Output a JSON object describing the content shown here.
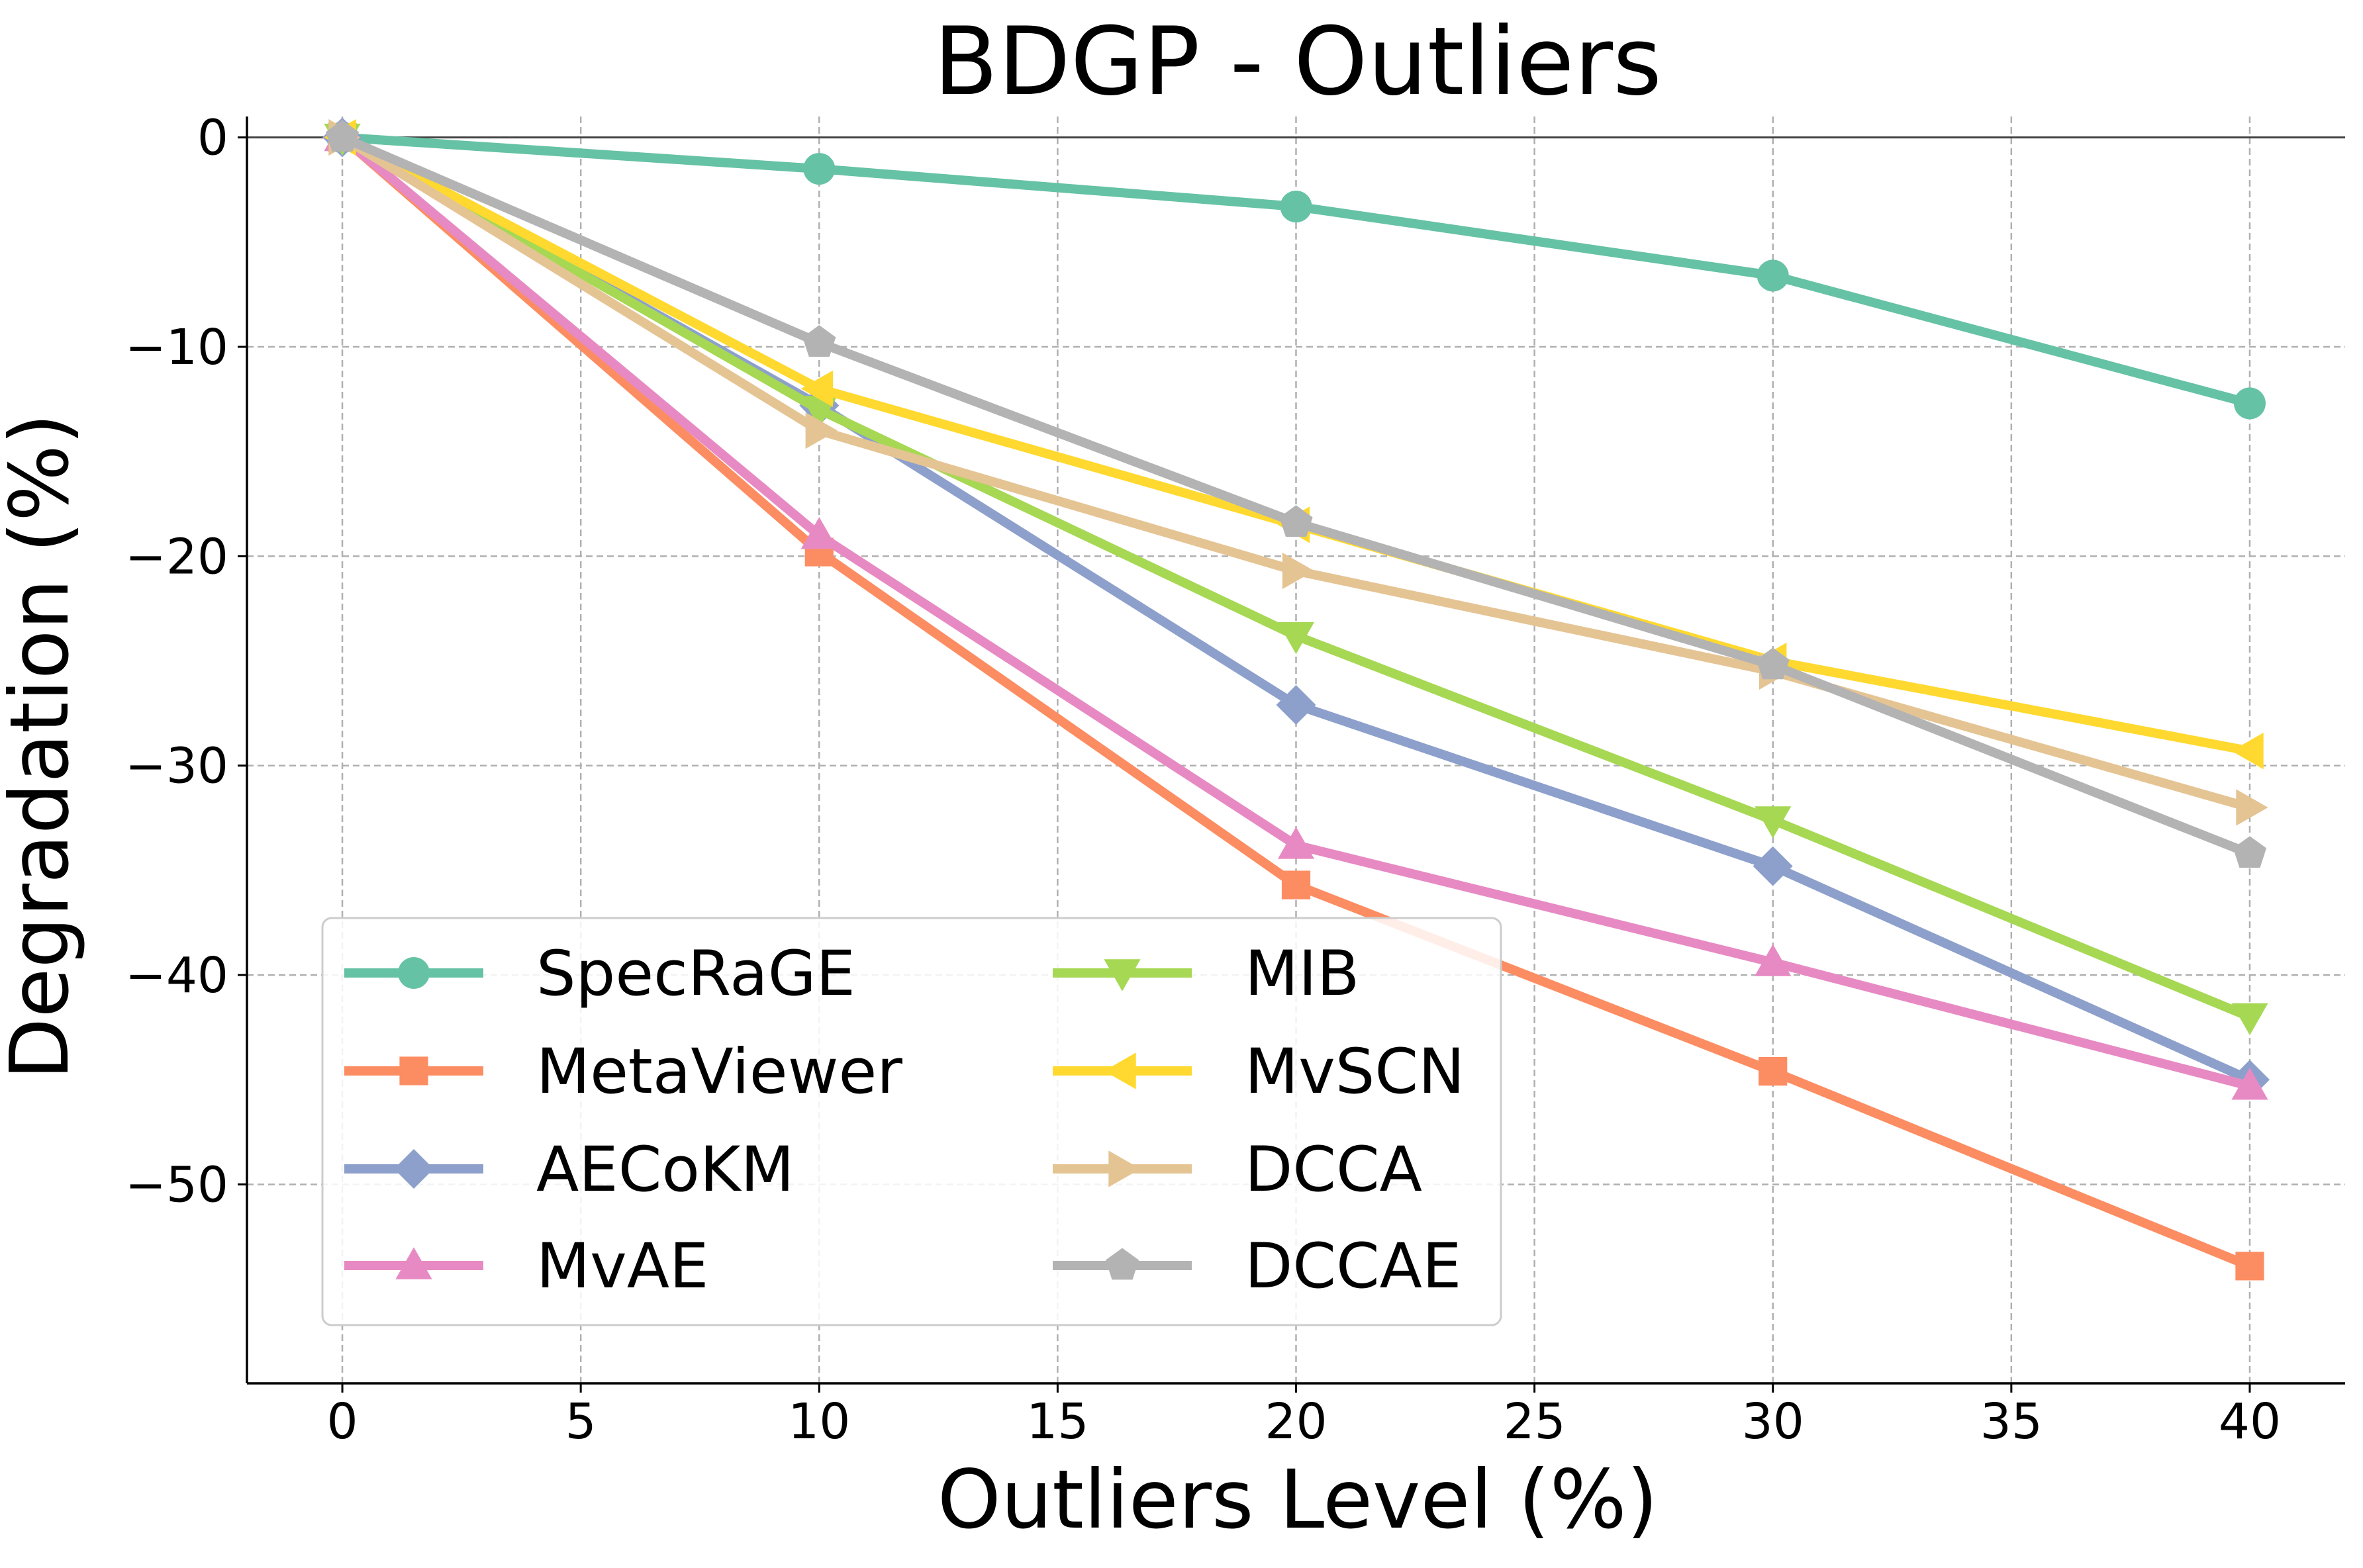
{
  "chart_data": {
    "type": "line",
    "title": "BDGP - Outliers",
    "xlabel": "Outliers Level (%)",
    "ylabel": "Degradation (%)",
    "xlim": [
      -2,
      42
    ],
    "ylim": [
      -59.5,
      1
    ],
    "xticks": [
      0,
      5,
      10,
      15,
      20,
      25,
      30,
      35,
      40
    ],
    "yticks": [
      0,
      -10,
      -20,
      -30,
      -40,
      -50
    ],
    "x": [
      0,
      10,
      20,
      30,
      40
    ],
    "grid": true,
    "legend_position": "lower-left",
    "series": [
      {
        "name": "SpecRaGE",
        "marker": "circle",
        "color": "#66c2a5",
        "values": [
          0,
          -1.5,
          -3.3,
          -6.6,
          -12.7
        ]
      },
      {
        "name": "MetaViewer",
        "marker": "square",
        "color": "#fc8d62",
        "values": [
          0,
          -19.8,
          -35.7,
          -44.6,
          -53.9
        ]
      },
      {
        "name": "AECoKM",
        "marker": "diamond",
        "color": "#8da0cb",
        "values": [
          0,
          -12.8,
          -27.1,
          -34.8,
          -45.0
        ]
      },
      {
        "name": "MvAE",
        "marker": "triangle-up",
        "color": "#e78ac3",
        "values": [
          0,
          -19.0,
          -33.8,
          -39.4,
          -45.3
        ]
      },
      {
        "name": "MIB",
        "marker": "triangle-down",
        "color": "#a6d854",
        "values": [
          0,
          -13.0,
          -23.8,
          -32.6,
          -42.0
        ]
      },
      {
        "name": "MvSCN",
        "marker": "triangle-left",
        "color": "#ffd92f",
        "values": [
          0,
          -12.0,
          -18.5,
          -25.0,
          -29.3
        ]
      },
      {
        "name": "DCCA",
        "marker": "triangle-right",
        "color": "#e5c494",
        "values": [
          0,
          -14.0,
          -20.7,
          -25.5,
          -32.0
        ]
      },
      {
        "name": "DCCAE",
        "marker": "pentagon",
        "color": "#b3b3b3",
        "values": [
          0,
          -9.8,
          -18.4,
          -25.2,
          -34.2
        ]
      }
    ]
  }
}
